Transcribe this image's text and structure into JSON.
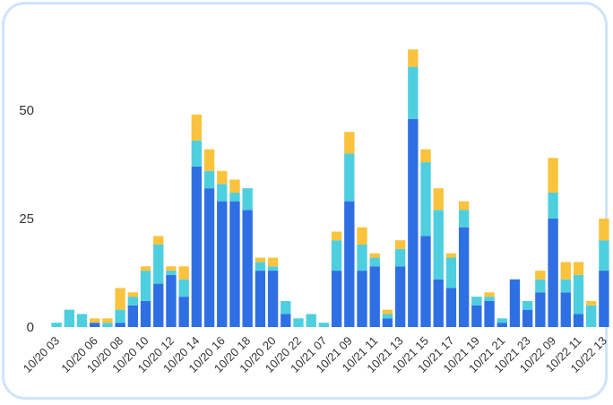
{
  "chart_data": {
    "type": "bar",
    "stacked": true,
    "title": "",
    "xlabel": "",
    "ylabel": "",
    "ylim": [
      0,
      66
    ],
    "yticks": [
      0,
      25,
      50
    ],
    "grid": false,
    "legend": "none",
    "categories": [
      "10/20 03",
      "10/20 04",
      "10/20 05",
      "10/20 06",
      "10/20 07",
      "10/20 08",
      "10/20 09",
      "10/20 10",
      "10/20 11",
      "10/20 12",
      "10/20 13",
      "10/20 14",
      "10/20 15",
      "10/20 16",
      "10/20 17",
      "10/20 18",
      "10/20 19",
      "10/20 20",
      "10/20 21",
      "10/20 22",
      "10/20 23",
      "10/21 07",
      "10/21 08",
      "10/21 09",
      "10/21 10",
      "10/21 11",
      "10/21 12",
      "10/21 13",
      "10/21 14",
      "10/21 15",
      "10/21 16",
      "10/21 17",
      "10/21 18",
      "10/21 19",
      "10/21 20",
      "10/21 21",
      "10/21 22",
      "10/21 23",
      "10/22 08",
      "10/22 09",
      "10/22 10",
      "10/22 11",
      "10/22 12",
      "10/22 13"
    ],
    "xtick_labels": [
      "10/20 03",
      "10/20 06",
      "10/20 08",
      "10/20 10",
      "10/20 12",
      "10/20 14",
      "10/20 16",
      "10/20 18",
      "10/20 20",
      "10/20 22",
      "10/21 07",
      "10/21 09",
      "10/21 11",
      "10/21 13",
      "10/21 15",
      "10/21 17",
      "10/21 19",
      "10/21 21",
      "10/21 23",
      "10/22 09",
      "10/22 11",
      "10/22 13"
    ],
    "series": [
      {
        "color": "#2f6fe4",
        "values": [
          0,
          0,
          0,
          1,
          0,
          1,
          5,
          6,
          10,
          12,
          7,
          37,
          32,
          29,
          29,
          27,
          13,
          13,
          3,
          0,
          0,
          0,
          13,
          29,
          13,
          14,
          2,
          14,
          48,
          21,
          11,
          9,
          23,
          5,
          6,
          1,
          11,
          4,
          8,
          25,
          8,
          3,
          0,
          13
        ]
      },
      {
        "color": "#4ecfe0",
        "values": [
          1,
          4,
          3,
          0,
          1,
          3,
          2,
          7,
          9,
          1,
          4,
          6,
          4,
          4,
          2,
          5,
          2,
          1,
          3,
          2,
          3,
          1,
          7,
          11,
          6,
          2,
          1,
          4,
          12,
          17,
          16,
          7,
          4,
          2,
          1,
          1,
          0,
          2,
          3,
          6,
          3,
          9,
          5,
          7
        ]
      },
      {
        "color": "#f9c33d",
        "values": [
          0,
          0,
          0,
          1,
          1,
          5,
          1,
          1,
          2,
          1,
          3,
          6,
          5,
          3,
          3,
          0,
          1,
          2,
          0,
          0,
          0,
          0,
          2,
          5,
          4,
          1,
          1,
          2,
          4,
          3,
          5,
          1,
          2,
          0,
          1,
          0,
          0,
          0,
          2,
          8,
          4,
          3,
          1,
          5
        ]
      }
    ]
  }
}
